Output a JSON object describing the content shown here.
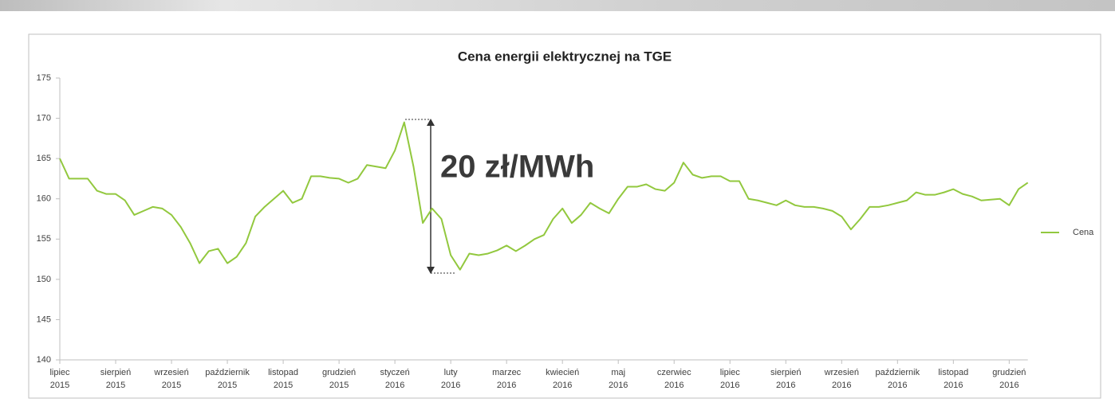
{
  "chart_data": {
    "type": "line",
    "title": "Cena energii elektrycznej na TGE",
    "annotation": "20 zł/MWh",
    "categories": [
      "lipiec 2015",
      null,
      null,
      null,
      null,
      null,
      "sierpień 2015",
      null,
      null,
      null,
      null,
      null,
      "wrzesień 2015",
      null,
      null,
      null,
      null,
      null,
      "październik 2015",
      null,
      null,
      null,
      null,
      null,
      "listopad 2015",
      null,
      null,
      null,
      null,
      null,
      "grudzień 2015",
      null,
      null,
      null,
      null,
      null,
      "styczeń 2016",
      null,
      null,
      null,
      null,
      null,
      "luty 2016",
      null,
      null,
      null,
      null,
      null,
      "marzec 2016",
      null,
      null,
      null,
      null,
      null,
      "kwiecień 2016",
      null,
      null,
      null,
      null,
      null,
      "maj 2016",
      null,
      null,
      null,
      null,
      null,
      "czerwiec 2016",
      null,
      null,
      null,
      null,
      null,
      "lipiec 2016",
      null,
      null,
      null,
      null,
      null,
      "sierpień 2016",
      null,
      null,
      null,
      null,
      null,
      "wrzesień 2016",
      null,
      null,
      null,
      null,
      null,
      "październik 2016",
      null,
      null,
      null,
      null,
      null,
      "listopad 2016",
      null,
      null,
      null,
      null,
      null,
      "grudzień 2016",
      null,
      null
    ],
    "series": [
      {
        "name": "Cena",
        "color": "#92c83e",
        "values": [
          165,
          162.5,
          162.5,
          162.5,
          161,
          160.6,
          160.6,
          159.8,
          158,
          158.5,
          159,
          158.8,
          158,
          156.5,
          154.5,
          152,
          153.5,
          153.8,
          152,
          152.8,
          154.5,
          157.8,
          159,
          160,
          161,
          159.5,
          160,
          162.8,
          162.8,
          162.6,
          162.5,
          162,
          162.5,
          164.2,
          164,
          163.8,
          166,
          169.5,
          164,
          157,
          158.8,
          157.5,
          153,
          151.2,
          153.2,
          153,
          153.2,
          153.6,
          154.2,
          153.5,
          154.2,
          155,
          155.5,
          157.5,
          158.8,
          157,
          158,
          159.5,
          158.8,
          158.2,
          160,
          161.5,
          161.5,
          161.8,
          161.2,
          161,
          162,
          164.5,
          163,
          162.6,
          162.8,
          162.8,
          162.2,
          162.2,
          160,
          159.8,
          159.5,
          159.2,
          159.8,
          159.2,
          159,
          159,
          158.8,
          158.5,
          157.8,
          156.2,
          157.5,
          159,
          159,
          159.2,
          159.5,
          159.8,
          160.8,
          160.5,
          160.5,
          160.8,
          161.2,
          160.6,
          160.3,
          159.8,
          159.9,
          160,
          159.2,
          161.2,
          162
        ]
      }
    ],
    "ylim": [
      140,
      175
    ],
    "yticks": [
      140,
      145,
      150,
      155,
      160,
      165,
      170,
      175
    ],
    "grid": false,
    "legend": "right"
  }
}
